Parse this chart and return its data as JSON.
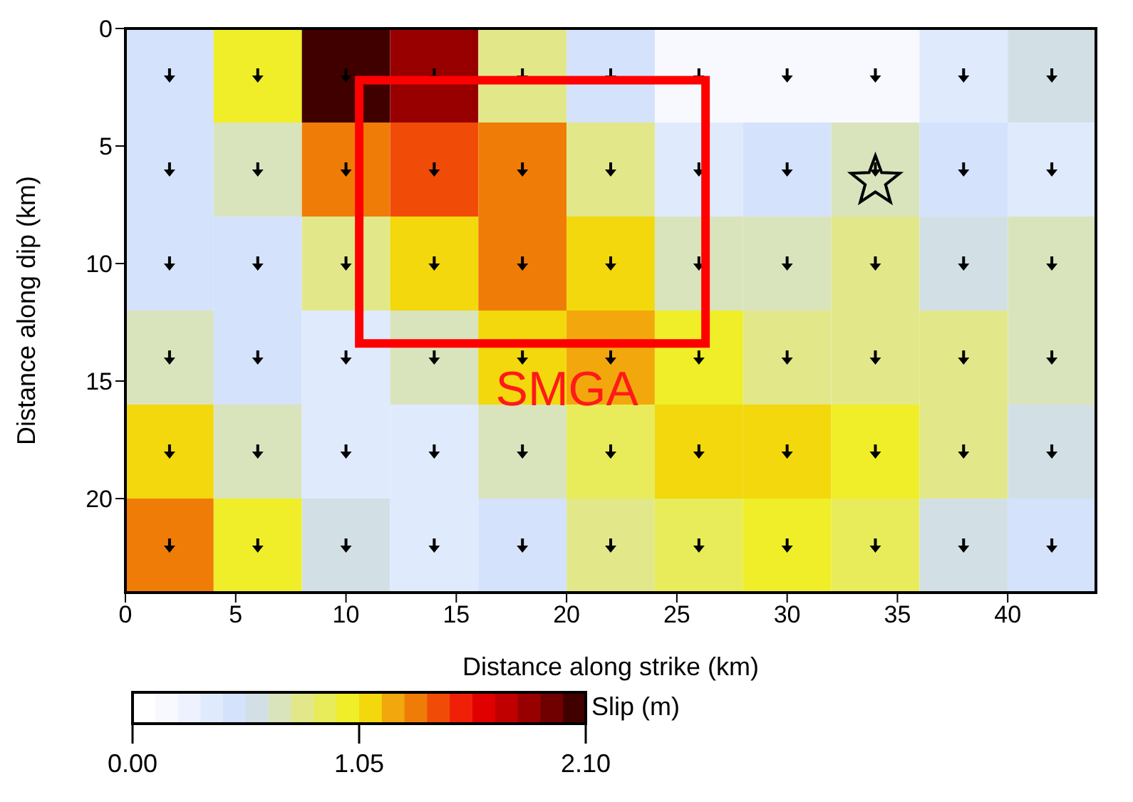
{
  "chart_data": {
    "type": "heatmap",
    "xlabel": "Distance along strike (km)",
    "ylabel": "Distance along dip (km)",
    "clabel": "Slip (m)",
    "x": [
      2,
      6,
      10,
      14,
      18,
      22,
      26,
      30,
      34,
      38,
      42
    ],
    "y": [
      2,
      6,
      10,
      14,
      18,
      22
    ],
    "xlim": [
      0,
      44
    ],
    "xticks": [
      0,
      5,
      10,
      15,
      20,
      25,
      30,
      35,
      40
    ],
    "ylim": [
      24,
      0
    ],
    "yticks": [
      0,
      5,
      10,
      15,
      20
    ],
    "clim": [
      0,
      2.1
    ],
    "cticks": [
      {
        "value": 0,
        "label": "0.00"
      },
      {
        "value": 1.05,
        "label": "1.05"
      },
      {
        "value": 2.1,
        "label": "2.10"
      }
    ],
    "cells": [
      [
        0.47,
        1.0,
        2.05,
        1.84,
        0.79,
        0.47,
        0.16,
        0.16,
        0.16,
        0.37,
        0.58
      ],
      [
        0.47,
        0.68,
        1.31,
        1.42,
        1.31,
        0.79,
        0.37,
        0.47,
        0.68,
        0.47,
        0.37
      ],
      [
        0.47,
        0.47,
        0.79,
        1.1,
        1.31,
        1.1,
        0.68,
        0.68,
        0.79,
        0.58,
        0.68
      ],
      [
        0.68,
        0.47,
        0.37,
        0.68,
        1.1,
        1.21,
        1.0,
        0.79,
        0.79,
        0.79,
        0.68
      ],
      [
        1.1,
        0.68,
        0.37,
        0.37,
        0.68,
        0.89,
        1.1,
        1.1,
        1.0,
        0.79,
        0.58
      ],
      [
        1.31,
        1.0,
        0.58,
        0.37,
        0.47,
        0.79,
        0.89,
        1.0,
        0.89,
        0.58,
        0.47
      ]
    ],
    "annotations": [
      "SMGA"
    ]
  }
}
